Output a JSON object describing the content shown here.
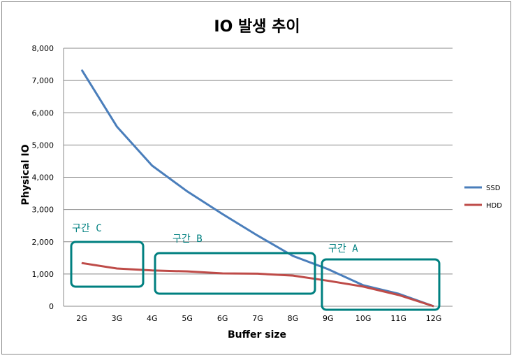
{
  "chart_data": {
    "type": "line",
    "title": "IO 발생 추이",
    "xlabel": "Buffer size",
    "ylabel": "Physical IO",
    "categories": [
      "2G",
      "3G",
      "4G",
      "5G",
      "6G",
      "7G",
      "8G",
      "9G",
      "10G",
      "11G",
      "12G"
    ],
    "ylim": [
      0,
      8000
    ],
    "yticks": [
      "0",
      "1,000",
      "2,000",
      "3,000",
      "4,000",
      "5,000",
      "6,000",
      "7,000",
      "8,000"
    ],
    "grid": true,
    "legend": "right",
    "series": [
      {
        "name": "SSD",
        "color": "#4a7ebb",
        "values": [
          7330,
          5570,
          4360,
          3560,
          2860,
          2190,
          1560,
          1150,
          650,
          390,
          0
        ]
      },
      {
        "name": "HDD",
        "color": "#be4b48",
        "values": [
          1340,
          1170,
          1110,
          1080,
          1020,
          1010,
          950,
          790,
          610,
          350,
          0
        ]
      }
    ],
    "annotations": [
      {
        "label": "구간 C",
        "from": "2G",
        "to": "3G"
      },
      {
        "label": "구간 B",
        "from": "4G",
        "to": "8G"
      },
      {
        "label": "구간 A",
        "from": "9G",
        "to": "12G"
      }
    ],
    "annotation_color": "#008080"
  }
}
